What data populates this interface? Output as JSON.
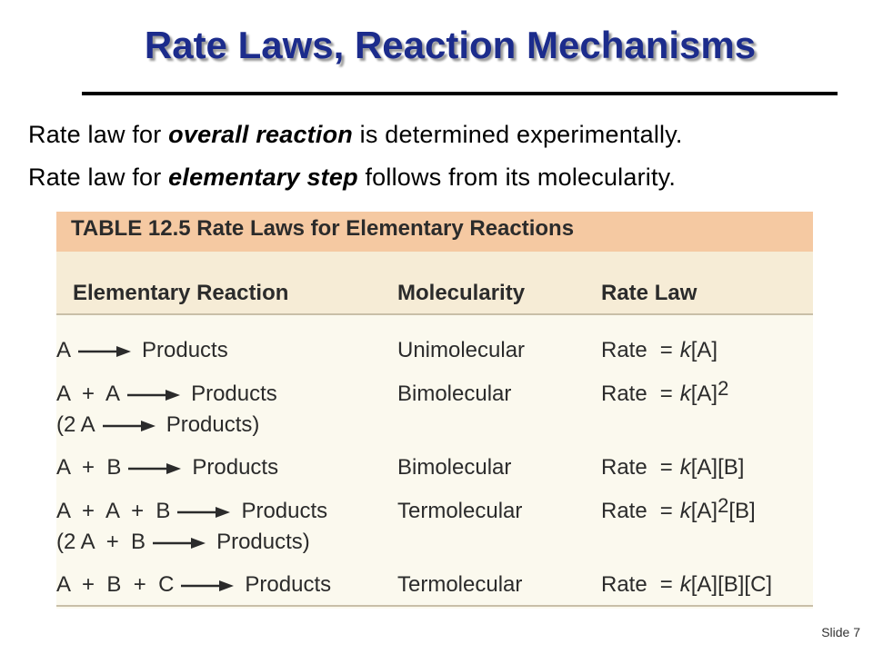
{
  "title": "Rate Laws, Reaction Mechanisms",
  "intro": {
    "line1": {
      "pre": "Rate law for ",
      "em": "overall reaction",
      "post": " is determined experimentally."
    },
    "line2": {
      "pre": "Rate law for ",
      "em": "elementary step",
      "post": " follows from its molecularity."
    }
  },
  "table": {
    "caption": "TABLE 12.5  Rate Laws for Elementary Reactions",
    "headers": [
      "Elementary Reaction",
      "Molecularity",
      "Rate Law"
    ],
    "rows": [
      {
        "reactants": "A",
        "products": "Products",
        "molecularity": "Unimolecular",
        "rate": "Rate",
        "eq": "=",
        "k": "k",
        "conc": "[A]",
        "sup": "",
        "tail": ""
      },
      {
        "reactants": "A  +  A",
        "products": "Products",
        "molecularity": "Bimolecular",
        "rate": "Rate",
        "eq": "=",
        "k": "k",
        "conc": "[A]",
        "sup": "2",
        "tail": ""
      },
      {
        "reactants": "(2 A",
        "products": "Products)",
        "molecularity": "",
        "rate": "",
        "eq": "",
        "k": "",
        "conc": "",
        "sup": "",
        "tail": ""
      },
      {
        "reactants": "A  +  B",
        "products": "Products",
        "molecularity": "Bimolecular",
        "rate": "Rate",
        "eq": "=",
        "k": "k",
        "conc": "[A][B]",
        "sup": "",
        "tail": ""
      },
      {
        "reactants": "A  +  A  +  B",
        "products": "Products",
        "molecularity": "Termolecular",
        "rate": "Rate",
        "eq": "=",
        "k": "k",
        "conc": "[A]",
        "sup": "2",
        "tail": "[B]"
      },
      {
        "reactants": "(2 A  +  B",
        "products": "Products)",
        "molecularity": "",
        "rate": "",
        "eq": "",
        "k": "",
        "conc": "",
        "sup": "",
        "tail": ""
      },
      {
        "reactants": "A  +  B  +  C",
        "products": "Products",
        "molecularity": "Termolecular",
        "rate": "Rate",
        "eq": "=",
        "k": "k",
        "conc": "[A][B][C]",
        "sup": "",
        "tail": ""
      }
    ]
  },
  "slide_number": "Slide 7"
}
